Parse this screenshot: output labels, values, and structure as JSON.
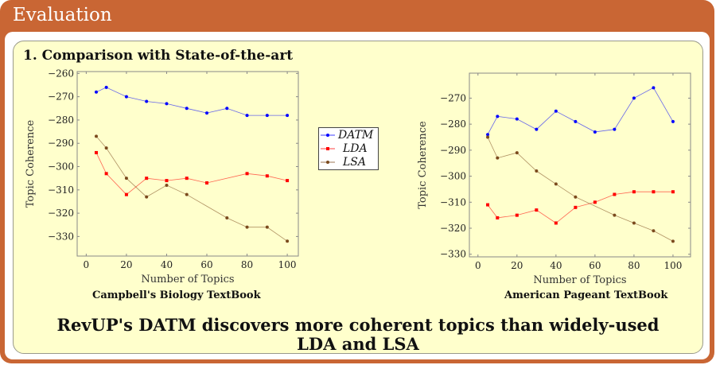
{
  "header": {
    "title": "Evaluation"
  },
  "section": {
    "title": "1.  Comparison with State-of-the-art"
  },
  "legend": [
    {
      "name": "DATM",
      "color": "#0000ff",
      "marker": "circle"
    },
    {
      "name": "LDA",
      "color": "#ff0000",
      "marker": "square"
    },
    {
      "name": "LSA",
      "color": "#7b4a1e",
      "marker": "circle"
    }
  ],
  "conclusion": {
    "line1": "RevUP's DATM discovers more coherent topics than widely-used",
    "line2": "LDA and LSA"
  },
  "chart_data": [
    {
      "type": "line",
      "title": "Campbell's Biology TextBook",
      "xlabel": "Number of Topics",
      "ylabel": "Topic Coherence",
      "xticks": [
        0,
        20,
        40,
        60,
        80,
        100
      ],
      "yticks": [
        -260,
        -270,
        -280,
        -290,
        -300,
        -310,
        -320,
        -330
      ],
      "series": [
        {
          "name": "DATM",
          "x": [
            5,
            10,
            20,
            30,
            40,
            50,
            60,
            70,
            80,
            90,
            100
          ],
          "y": [
            -268,
            -266,
            -270,
            -272,
            -273,
            -275,
            -277,
            -275,
            -278,
            -278,
            -278
          ]
        },
        {
          "name": "LDA",
          "x": [
            5,
            10,
            20,
            30,
            40,
            50,
            60,
            80,
            90,
            100
          ],
          "y": [
            -294,
            -303,
            -312,
            -305,
            -306,
            -305,
            -307,
            -303,
            -304,
            -306
          ]
        },
        {
          "name": "LSA",
          "x": [
            5,
            10,
            20,
            30,
            40,
            50,
            70,
            80,
            90,
            100
          ],
          "y": [
            -287,
            -292,
            -305,
            -313,
            -308,
            -312,
            -322,
            -326,
            -326,
            -332
          ]
        }
      ]
    },
    {
      "type": "line",
      "title": "American Pageant TextBook",
      "xlabel": "Number of Topics",
      "ylabel": "Topic Coherence",
      "xticks": [
        0,
        20,
        40,
        60,
        80,
        100
      ],
      "yticks": [
        -270,
        -280,
        -290,
        -300,
        -310,
        -320,
        -330
      ],
      "series": [
        {
          "name": "DATM",
          "x": [
            5,
            10,
            20,
            30,
            40,
            50,
            60,
            70,
            80,
            90,
            100
          ],
          "y": [
            -284,
            -277,
            -278,
            -282,
            -275,
            -279,
            -283,
            -282,
            -270,
            -266,
            -279
          ]
        },
        {
          "name": "LDA",
          "x": [
            5,
            10,
            20,
            30,
            40,
            50,
            60,
            70,
            80,
            90,
            100
          ],
          "y": [
            -311,
            -316,
            -315,
            -313,
            -318,
            -312,
            -310,
            -307,
            -306,
            -306,
            -306
          ]
        },
        {
          "name": "LSA",
          "x": [
            5,
            10,
            20,
            30,
            40,
            50,
            70,
            80,
            90,
            100
          ],
          "y": [
            -285,
            -293,
            -291,
            -298,
            -303,
            -308,
            -315,
            -318,
            -321,
            -325
          ]
        }
      ]
    }
  ]
}
